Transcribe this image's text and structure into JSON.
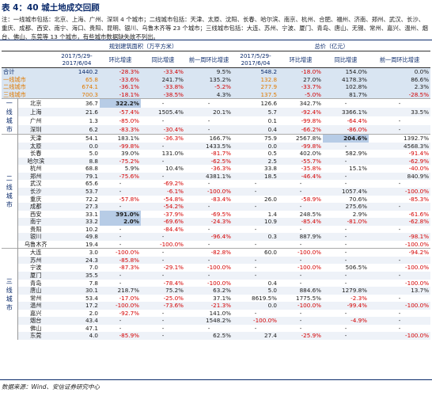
{
  "title": "表 4：40 城土地成交回顾",
  "note": "注：一线城市包括：北京、上海、广州、深圳 4 个城市；二线城市包括：天津、太原、沈阳、长春、哈尔滨、南京、杭州、合肥、福州、济南、郑州、武汉、长沙、重庆、成都、西安、南宁、海口、贵阳、昆明、银川、乌鲁木齐等 23 个城市；三线城市包括：大连、苏州、宁波、厦门、青岛、唐山、无锡、常州、嘉兴、温州、烟台、佛山、东莞等 13 个城市，有些城市数据缺失故不列出。",
  "header": {
    "group_area": "规划建筑面积（万平方米）",
    "group_value": "总价（亿元）",
    "cols": [
      "2017/5/29-2017/6/04",
      "环比增速",
      "同比增速",
      "前一周环比增速",
      "2017/5/29-2017/6/04",
      "环比增速",
      "同比增速",
      "前一周环比增速"
    ]
  },
  "summary_rows": [
    {
      "label": "合计",
      "v": [
        "1440.2",
        "-28.3%",
        "-33.4%",
        "9.5%",
        "548.2",
        "-18.0%",
        "154.0%",
        "0.0%"
      ]
    },
    {
      "label": "一线城市",
      "v": [
        "65.8",
        "-33.6%",
        "241.7%",
        "135.2%",
        "132.8",
        "27.0%",
        "4178.3%",
        "86.6%"
      ]
    },
    {
      "label": "二线城市",
      "v": [
        "674.1",
        "-36.1%",
        "-33.8%",
        "-5.2%",
        "277.9",
        "-33.7%",
        "102.8%",
        "2.3%"
      ]
    },
    {
      "label": "三线城市",
      "v": [
        "700.3",
        "-18.1%",
        "-38.5%",
        "4.3%",
        "137.5",
        "-5.0%",
        "81.7%",
        "-28.5%"
      ]
    }
  ],
  "tiers": [
    {
      "label": "一线城市",
      "rows": [
        {
          "city": "北京",
          "v": [
            "36.7",
            "322.2%",
            "-",
            "-",
            "126.6",
            "342.7%",
            "-",
            "-"
          ]
        },
        {
          "city": "上海",
          "v": [
            "21.6",
            "-57.4%",
            "1505.4%",
            "20.1%",
            "5.7",
            "-92.4%",
            "3366.1%",
            "33.5%"
          ]
        },
        {
          "city": "广州",
          "v": [
            "1.3",
            "-85.0%",
            "-",
            "-",
            "0.1",
            "-99.8%",
            "-64.4%",
            "-"
          ]
        },
        {
          "city": "深圳",
          "v": [
            "6.2",
            "-83.3%",
            "-30.4%",
            "-",
            "0.4",
            "-66.2%",
            "-86.0%",
            "-"
          ]
        }
      ]
    },
    {
      "label": "二线城市",
      "rows": [
        {
          "city": "天津",
          "v": [
            "54.1",
            "183.1%",
            "-36.3%",
            "166.7%",
            "75.9",
            "2567.8%",
            "204.6%",
            "1392.7%"
          ]
        },
        {
          "city": "太原",
          "v": [
            "0.0",
            "-99.8%",
            "-",
            "1433.5%",
            "0.0",
            "-99.8%",
            "-",
            "4568.3%"
          ]
        },
        {
          "city": "长春",
          "v": [
            "5.0",
            "39.0%",
            "131.0%",
            "-81.7%",
            "0.5",
            "402.0%",
            "582.9%",
            "-91.4%"
          ]
        },
        {
          "city": "哈尔滨",
          "v": [
            "8.8",
            "-75.2%",
            "-",
            "-62.5%",
            "2.5",
            "-55.7%",
            "-",
            "-62.9%"
          ]
        },
        {
          "city": "杭州",
          "v": [
            "68.8",
            "5.9%",
            "10.4%",
            "-36.3%",
            "33.8",
            "-35.8%",
            "15.1%",
            "-40.0%"
          ]
        },
        {
          "city": "郑州",
          "v": [
            "79.1",
            "-75.6%",
            "-",
            "4381.1%",
            "18.5",
            "-46.4%",
            "-",
            "840.9%"
          ]
        },
        {
          "city": "武汉",
          "v": [
            "65.6",
            "-",
            "-69.2%",
            "-",
            "-",
            "-",
            "-",
            "-"
          ]
        },
        {
          "city": "长沙",
          "v": [
            "53.7",
            "-",
            "-6.1%",
            "-100.0%",
            "-",
            "-",
            "1057.4%",
            "-100.0%"
          ]
        },
        {
          "city": "重庆",
          "v": [
            "72.2",
            "-57.8%",
            "-54.8%",
            "-83.4%",
            "26.0",
            "-58.9%",
            "70.6%",
            "-85.3%"
          ]
        },
        {
          "city": "成都",
          "v": [
            "27.3",
            "-",
            "-54.2%",
            "-",
            "-",
            "-",
            "275.6%",
            "-"
          ]
        },
        {
          "city": "西安",
          "v": [
            "33.1",
            "391.0%",
            "-37.9%",
            "-69.5%",
            "1.4",
            "248.5%",
            "2.9%",
            "-61.6%"
          ]
        },
        {
          "city": "南宁",
          "v": [
            "33.2",
            "2.0%",
            "-69.6%",
            "-24.3%",
            "10.9",
            "-85.4%",
            "-81.0%",
            "-62.8%"
          ]
        },
        {
          "city": "贵阳",
          "v": [
            "10.2",
            "-",
            "-84.4%",
            "-",
            "-",
            "-",
            "-",
            "-"
          ]
        },
        {
          "city": "银川",
          "v": [
            "49.8",
            "-",
            "-",
            "-96.4%",
            "0.3",
            "887.9%",
            "-",
            "-98.1%"
          ]
        },
        {
          "city": "乌鲁木齐",
          "v": [
            "19.4",
            "-",
            "-100.0%",
            "-",
            "-",
            "-",
            "-",
            "-100.0%"
          ]
        }
      ]
    },
    {
      "label": "三线城市",
      "rows": [
        {
          "city": "大连",
          "v": [
            "3.0",
            "-100.0%",
            "-",
            "-82.8%",
            "60.0",
            "-100.0%",
            "-",
            "-94.2%"
          ]
        },
        {
          "city": "苏州",
          "v": [
            "24.3",
            "-85.8%",
            "-",
            "-",
            "-",
            "-",
            "-",
            "-"
          ]
        },
        {
          "city": "宁波",
          "v": [
            "7.0",
            "-87.3%",
            "-29.1%",
            "-100.0%",
            "-",
            "-100.0%",
            "506.5%",
            "-100.0%"
          ]
        },
        {
          "city": "厦门",
          "v": [
            "35.5",
            "-",
            "-",
            "-",
            "-",
            "-",
            "-",
            "-"
          ]
        },
        {
          "city": "青岛",
          "v": [
            "7.8",
            "-",
            "-78.4%",
            "-100.0%",
            "0.4",
            "-",
            "-",
            "-100.0%"
          ]
        },
        {
          "city": "唐山",
          "v": [
            "30.1",
            "218.7%",
            "75.2%",
            "63.2%",
            "5.0",
            "884.6%",
            "1279.8%",
            "13.7%"
          ]
        },
        {
          "city": "常州",
          "v": [
            "53.4",
            "-17.0%",
            "-25.0%",
            "37.1%",
            "8619.5%",
            "1775.5%",
            "-2.3%",
            "-"
          ]
        },
        {
          "city": "温州",
          "v": [
            "17.2",
            "-100.0%",
            "-73.6%",
            "-21.3%",
            "0.0",
            "-100.0%",
            "-99.4%",
            "-100.0%"
          ]
        },
        {
          "city": "嘉兴",
          "v": [
            "2.0",
            "-92.7%",
            "-",
            "141.0%",
            "-",
            "-",
            "-",
            "-"
          ]
        },
        {
          "city": "烟台",
          "v": [
            "43.4",
            "-",
            "-",
            "1548.2%",
            "-100.0%",
            "-",
            "-4.9%",
            "-"
          ]
        },
        {
          "city": "佛山",
          "v": [
            "47.1",
            "-",
            "-",
            "-",
            "-",
            "-",
            "-",
            "-"
          ]
        },
        {
          "city": "东莞",
          "v": [
            "4.0",
            "-85.9%",
            "-",
            "62.5%",
            "27.4",
            "-25.9%",
            "-",
            "-100.0%"
          ]
        }
      ]
    }
  ],
  "source": "数据来源：Wind、安信证券研究中心",
  "colors": {
    "accent": "#0a2a6b",
    "negative": "#d40000",
    "summary_bg": "#d9e5f2",
    "orange": "#e07a00"
  }
}
